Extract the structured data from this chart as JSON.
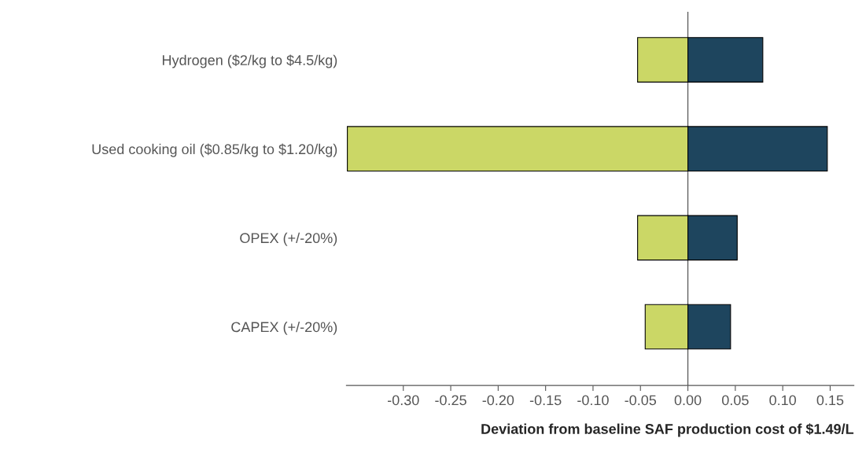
{
  "chart_data": {
    "type": "bar",
    "orientation": "horizontal",
    "stacked": true,
    "categories": [
      "Hydrogen ($2/kg to $4.5/kg)",
      "Used cooking oil ($0.85/kg to $1.20/kg)",
      "OPEX (+/-20%)",
      "CAPEX (+/-20%)"
    ],
    "series": [
      {
        "color": "#cbd766",
        "values": [
          -0.053,
          -0.359,
          -0.053,
          -0.045
        ]
      },
      {
        "color": "#1e455e",
        "values": [
          0.079,
          0.147,
          0.052,
          0.045
        ]
      }
    ],
    "xlabel": "Deviation from baseline SAF production cost of $1.49/L",
    "xlim": [
      -0.36,
      0.175
    ],
    "xticks": [
      {
        "value": -0.3,
        "label": "-0.30"
      },
      {
        "value": -0.25,
        "label": "-0.25"
      },
      {
        "value": -0.2,
        "label": "-0.20"
      },
      {
        "value": -0.15,
        "label": "-0.15"
      },
      {
        "value": -0.1,
        "label": "-0.10"
      },
      {
        "value": -0.05,
        "label": "-0.05"
      },
      {
        "value": 0,
        "label": "0.00"
      },
      {
        "value": 0.05,
        "label": "0.05"
      },
      {
        "value": 0.1,
        "label": "0.10"
      },
      {
        "value": 0.15,
        "label": "0.15"
      }
    ],
    "ref_lines": [
      {
        "axis": "x",
        "value": 0,
        "color": "#555555"
      }
    ],
    "grid": false
  }
}
